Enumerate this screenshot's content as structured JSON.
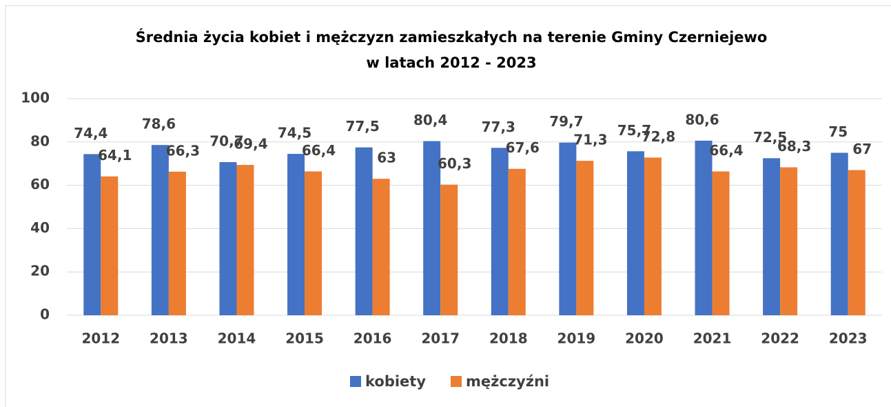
{
  "chart_data": {
    "type": "bar",
    "title": [
      "Średnia życia kobiet i mężczyzn zamieszkałych na terenie Gminy Czerniejewo",
      "w latach 2012 - 2023"
    ],
    "categories": [
      "2012",
      "2013",
      "2014",
      "2015",
      "2016",
      "2017",
      "2018",
      "2019",
      "2020",
      "2021",
      "2022",
      "2023"
    ],
    "series": [
      {
        "name": "kobiety",
        "color": "#4472c4",
        "values": [
          74.4,
          78.6,
          70.7,
          74.5,
          77.5,
          80.4,
          77.3,
          79.7,
          75.7,
          80.6,
          72.5,
          75
        ],
        "value_labels": [
          "74,4",
          "78,6",
          "70,7",
          "74,5",
          "77,5",
          "80,4",
          "77,3",
          "79,7",
          "75,7",
          "80,6",
          "72,5",
          "75"
        ]
      },
      {
        "name": "mężczyźni",
        "color": "#ed7d31",
        "values": [
          64.1,
          66.3,
          69.4,
          66.4,
          63,
          60.3,
          67.6,
          71.3,
          72.8,
          66.4,
          68.3,
          67
        ],
        "value_labels": [
          "64,1",
          "66,3",
          "69,4",
          "66,4",
          "63",
          "60,3",
          "67,6",
          "71,3",
          "72,8",
          "66,4",
          "68,3",
          "67"
        ]
      }
    ],
    "ylim": [
      0,
      100
    ],
    "yticks": [
      0,
      20,
      40,
      60,
      80,
      100
    ],
    "grid": true,
    "legend": "bottom"
  }
}
